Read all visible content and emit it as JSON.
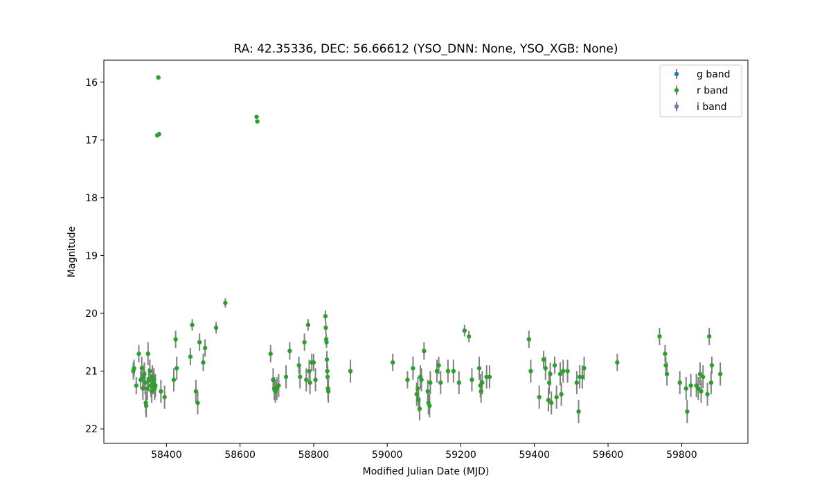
{
  "chart_data": {
    "type": "scatter",
    "title": "RA: 42.35336, DEC: 56.66612 (YSO_DNN: None, YSO_XGB: None)",
    "xlabel": "Modified Julian Date (MJD)",
    "ylabel": "Magnitude",
    "xlim": [
      58230,
      59980
    ],
    "ylim": [
      22.25,
      15.62
    ],
    "y_inverted": true,
    "xticks": [
      58400,
      58600,
      58800,
      59000,
      59200,
      59400,
      59600,
      59800
    ],
    "yticks": [
      16,
      17,
      18,
      19,
      20,
      21,
      22
    ],
    "grid": false,
    "legend_position": "upper right",
    "errorbar_color": "#808080",
    "series": [
      {
        "name": "g band",
        "color": "#1f77b4",
        "points": []
      },
      {
        "name": "r band",
        "color": "#2ca02c",
        "points": [
          [
            58310,
            21.0,
            0.15
          ],
          [
            58312,
            20.95,
            0.15
          ],
          [
            58318,
            21.25,
            0.15
          ],
          [
            58325,
            20.7,
            0.15
          ],
          [
            58330,
            21.15,
            0.15
          ],
          [
            58333,
            20.95,
            0.2
          ],
          [
            58336,
            21.3,
            0.2
          ],
          [
            58338,
            21.1,
            0.2
          ],
          [
            58340,
            21.05,
            0.2
          ],
          [
            58342,
            21.2,
            0.2
          ],
          [
            58344,
            21.55,
            0.2
          ],
          [
            58345,
            21.6,
            0.2
          ],
          [
            58348,
            21.3,
            0.2
          ],
          [
            58350,
            20.7,
            0.2
          ],
          [
            58352,
            21.15,
            0.2
          ],
          [
            58355,
            21.0,
            0.2
          ],
          [
            58358,
            21.25,
            0.2
          ],
          [
            58360,
            21.35,
            0.2
          ],
          [
            58362,
            21.1,
            0.2
          ],
          [
            58364,
            21.2,
            0.2
          ],
          [
            58366,
            21.15,
            0.2
          ],
          [
            58368,
            21.3,
            0.2
          ],
          [
            58370,
            21.25,
            0.2
          ],
          [
            58375,
            16.92,
            0.03
          ],
          [
            58378,
            15.92,
            0.03
          ],
          [
            58380,
            16.9,
            0.03
          ],
          [
            58385,
            21.35,
            0.2
          ],
          [
            58395,
            21.45,
            0.2
          ],
          [
            58420,
            21.15,
            0.2
          ],
          [
            58425,
            20.45,
            0.15
          ],
          [
            58428,
            20.95,
            0.2
          ],
          [
            58465,
            20.75,
            0.15
          ],
          [
            58470,
            20.2,
            0.1
          ],
          [
            58480,
            21.35,
            0.2
          ],
          [
            58485,
            21.55,
            0.2
          ],
          [
            58490,
            20.5,
            0.15
          ],
          [
            58500,
            20.85,
            0.15
          ],
          [
            58505,
            20.6,
            0.15
          ],
          [
            58535,
            20.25,
            0.1
          ],
          [
            58560,
            19.82,
            0.08
          ],
          [
            58645,
            16.6,
            0.03
          ],
          [
            58647,
            16.68,
            0.03
          ],
          [
            58683,
            20.7,
            0.15
          ],
          [
            58690,
            21.15,
            0.2
          ],
          [
            58693,
            21.3,
            0.2
          ],
          [
            58696,
            21.35,
            0.2
          ],
          [
            58700,
            21.3,
            0.2
          ],
          [
            58705,
            21.25,
            0.2
          ],
          [
            58725,
            21.1,
            0.2
          ],
          [
            58735,
            20.65,
            0.15
          ],
          [
            58760,
            20.9,
            0.15
          ],
          [
            58763,
            21.1,
            0.2
          ],
          [
            58775,
            20.5,
            0.15
          ],
          [
            58780,
            21.15,
            0.2
          ],
          [
            58785,
            20.2,
            0.1
          ],
          [
            58788,
            21.0,
            0.2
          ],
          [
            58790,
            21.2,
            0.2
          ],
          [
            58795,
            20.85,
            0.15
          ],
          [
            58800,
            20.85,
            0.15
          ],
          [
            58805,
            21.15,
            0.2
          ],
          [
            58832,
            20.05,
            0.1
          ],
          [
            58833,
            20.25,
            0.1
          ],
          [
            58834,
            20.45,
            0.1
          ],
          [
            58835,
            20.5,
            0.1
          ],
          [
            58836,
            20.8,
            0.15
          ],
          [
            58837,
            21.0,
            0.15
          ],
          [
            58838,
            21.1,
            0.2
          ],
          [
            58839,
            21.3,
            0.2
          ],
          [
            58840,
            21.35,
            0.2
          ],
          [
            58900,
            21.0,
            0.2
          ],
          [
            59015,
            20.85,
            0.15
          ],
          [
            59055,
            21.15,
            0.15
          ],
          [
            59070,
            20.95,
            0.2
          ],
          [
            59080,
            21.4,
            0.2
          ],
          [
            59083,
            21.3,
            0.2
          ],
          [
            59085,
            21.5,
            0.2
          ],
          [
            59088,
            21.65,
            0.2
          ],
          [
            59090,
            21.1,
            0.2
          ],
          [
            59093,
            21.15,
            0.2
          ],
          [
            59100,
            20.65,
            0.15
          ],
          [
            59110,
            21.35,
            0.2
          ],
          [
            59112,
            21.55,
            0.2
          ],
          [
            59115,
            21.6,
            0.2
          ],
          [
            59117,
            21.2,
            0.2
          ],
          [
            59135,
            21.0,
            0.2
          ],
          [
            59140,
            20.9,
            0.15
          ],
          [
            59145,
            21.2,
            0.2
          ],
          [
            59165,
            21.0,
            0.2
          ],
          [
            59180,
            21.0,
            0.2
          ],
          [
            59195,
            21.2,
            0.2
          ],
          [
            59210,
            20.3,
            0.1
          ],
          [
            59222,
            20.4,
            0.1
          ],
          [
            59230,
            21.15,
            0.2
          ],
          [
            59250,
            20.95,
            0.2
          ],
          [
            59253,
            21.25,
            0.2
          ],
          [
            59255,
            21.35,
            0.2
          ],
          [
            59258,
            21.2,
            0.2
          ],
          [
            59270,
            21.1,
            0.2
          ],
          [
            59278,
            21.1,
            0.2
          ],
          [
            59385,
            20.45,
            0.15
          ],
          [
            59390,
            21.0,
            0.2
          ],
          [
            59413,
            21.45,
            0.2
          ],
          [
            59425,
            20.8,
            0.15
          ],
          [
            59430,
            20.95,
            0.2
          ],
          [
            59438,
            21.5,
            0.2
          ],
          [
            59440,
            21.2,
            0.2
          ],
          [
            59443,
            21.05,
            0.2
          ],
          [
            59446,
            21.55,
            0.2
          ],
          [
            59455,
            20.9,
            0.15
          ],
          [
            59460,
            21.45,
            0.2
          ],
          [
            59470,
            21.05,
            0.2
          ],
          [
            59473,
            21.4,
            0.2
          ],
          [
            59478,
            21.0,
            0.2
          ],
          [
            59490,
            21.0,
            0.2
          ],
          [
            59515,
            21.2,
            0.2
          ],
          [
            59520,
            21.7,
            0.2
          ],
          [
            59523,
            21.1,
            0.2
          ],
          [
            59530,
            21.1,
            0.2
          ],
          [
            59535,
            20.95,
            0.2
          ],
          [
            59625,
            20.85,
            0.15
          ],
          [
            59740,
            20.4,
            0.15
          ],
          [
            59755,
            20.7,
            0.15
          ],
          [
            59757,
            20.9,
            0.15
          ],
          [
            59760,
            21.05,
            0.2
          ],
          [
            59795,
            21.2,
            0.2
          ],
          [
            59812,
            21.3,
            0.2
          ],
          [
            59815,
            21.7,
            0.2
          ],
          [
            59825,
            21.25,
            0.2
          ],
          [
            59840,
            21.25,
            0.2
          ],
          [
            59845,
            21.3,
            0.2
          ],
          [
            59850,
            21.05,
            0.2
          ],
          [
            59853,
            21.35,
            0.2
          ],
          [
            59858,
            21.1,
            0.2
          ],
          [
            59870,
            21.4,
            0.2
          ],
          [
            59875,
            20.4,
            0.15
          ],
          [
            59880,
            21.2,
            0.2
          ],
          [
            59882,
            20.9,
            0.15
          ],
          [
            59905,
            21.05,
            0.2
          ]
        ]
      },
      {
        "name": "i band",
        "color": "#9467bd",
        "points": []
      }
    ]
  }
}
